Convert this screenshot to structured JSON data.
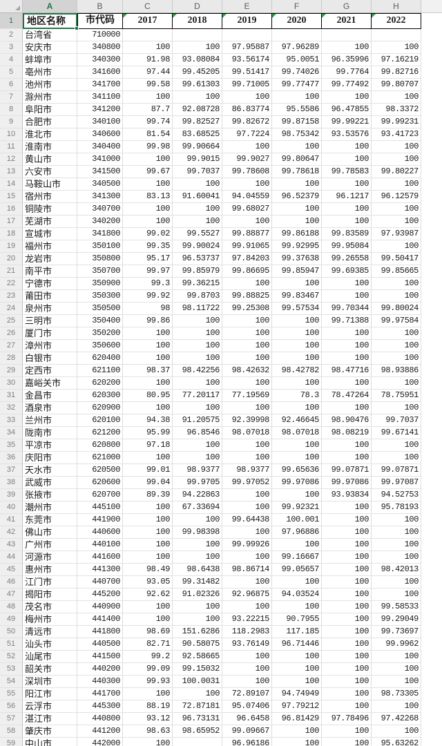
{
  "sheet": {
    "column_letters": [
      "A",
      "B",
      "C",
      "D",
      "E",
      "F",
      "G",
      "H"
    ],
    "selected_column_letter": "A",
    "selected_row_number": "1",
    "selected_cell": "A1",
    "colors": {
      "selection_green": "#217346",
      "error_indicator_green": "#21A33C",
      "header_border_black": "#000000"
    },
    "header": {
      "row_number": "1",
      "region": "地区名称",
      "code": "市代码",
      "years": [
        "2017",
        "2018",
        "2019",
        "2020",
        "2021",
        "2022"
      ]
    },
    "rows": [
      [
        "2",
        "台湾省",
        "710000",
        "",
        "",
        "",
        "",
        "",
        ""
      ],
      [
        "3",
        "安庆市",
        "340800",
        "100",
        "100",
        "97.95887",
        "97.96289",
        "100",
        "100"
      ],
      [
        "4",
        "蚌埠市",
        "340300",
        "91.98",
        "93.08084",
        "93.56174",
        "95.0051",
        "96.35996",
        "97.16219"
      ],
      [
        "5",
        "亳州市",
        "341600",
        "97.44",
        "99.45205",
        "99.51417",
        "99.74026",
        "99.7764",
        "99.82716"
      ],
      [
        "6",
        "池州市",
        "341700",
        "99.58",
        "99.61303",
        "99.71005",
        "99.77477",
        "99.77492",
        "99.80707"
      ],
      [
        "7",
        "滁州市",
        "341100",
        "100",
        "100",
        "100",
        "100",
        "100",
        "100"
      ],
      [
        "8",
        "阜阳市",
        "341200",
        "87.7",
        "92.08728",
        "86.83774",
        "95.5586",
        "96.47855",
        "98.3372"
      ],
      [
        "9",
        "合肥市",
        "340100",
        "99.74",
        "99.82527",
        "99.82672",
        "99.87158",
        "99.99221",
        "99.99231"
      ],
      [
        "10",
        "淮北市",
        "340600",
        "81.54",
        "83.68525",
        "97.7224",
        "98.75342",
        "93.53576",
        "93.41723"
      ],
      [
        "11",
        "淮南市",
        "340400",
        "99.98",
        "99.90664",
        "100",
        "100",
        "100",
        "100"
      ],
      [
        "12",
        "黄山市",
        "341000",
        "100",
        "99.9015",
        "99.9027",
        "99.80647",
        "100",
        "100"
      ],
      [
        "13",
        "六安市",
        "341500",
        "99.67",
        "99.7037",
        "99.78608",
        "99.78618",
        "99.78583",
        "99.80227"
      ],
      [
        "14",
        "马鞍山市",
        "340500",
        "100",
        "100",
        "100",
        "100",
        "100",
        "100"
      ],
      [
        "15",
        "宿州市",
        "341300",
        "83.13",
        "91.60041",
        "94.04559",
        "96.52379",
        "96.1217",
        "96.12579"
      ],
      [
        "16",
        "铜陵市",
        "340700",
        "100",
        "100",
        "99.68027",
        "100",
        "100",
        "100"
      ],
      [
        "17",
        "芜湖市",
        "340200",
        "100",
        "100",
        "100",
        "100",
        "100",
        "100"
      ],
      [
        "18",
        "宣城市",
        "341800",
        "99.02",
        "99.5527",
        "99.88877",
        "99.86188",
        "99.83589",
        "97.93987"
      ],
      [
        "19",
        "福州市",
        "350100",
        "99.35",
        "99.90024",
        "99.91065",
        "99.92995",
        "99.95084",
        "100"
      ],
      [
        "20",
        "龙岩市",
        "350800",
        "95.17",
        "96.53737",
        "97.84203",
        "99.37638",
        "99.26558",
        "99.50417"
      ],
      [
        "21",
        "南平市",
        "350700",
        "99.97",
        "99.85979",
        "99.86695",
        "99.85947",
        "99.69385",
        "99.85665"
      ],
      [
        "22",
        "宁德市",
        "350900",
        "99.3",
        "99.36215",
        "100",
        "100",
        "100",
        "100"
      ],
      [
        "23",
        "莆田市",
        "350300",
        "99.92",
        "99.8703",
        "99.88825",
        "99.83467",
        "100",
        "100"
      ],
      [
        "24",
        "泉州市",
        "350500",
        "98",
        "98.11722",
        "99.25308",
        "99.57534",
        "99.70344",
        "99.80024"
      ],
      [
        "25",
        "三明市",
        "350400",
        "99.86",
        "100",
        "100",
        "100",
        "99.71388",
        "99.97584"
      ],
      [
        "26",
        "厦门市",
        "350200",
        "100",
        "100",
        "100",
        "100",
        "100",
        "100"
      ],
      [
        "27",
        "漳州市",
        "350600",
        "100",
        "100",
        "100",
        "100",
        "100",
        "100"
      ],
      [
        "28",
        "白银市",
        "620400",
        "100",
        "100",
        "100",
        "100",
        "100",
        "100"
      ],
      [
        "29",
        "定西市",
        "621100",
        "98.37",
        "98.42256",
        "98.42632",
        "98.42782",
        "98.47716",
        "98.93886"
      ],
      [
        "30",
        "嘉峪关市",
        "620200",
        "100",
        "100",
        "100",
        "100",
        "100",
        "100"
      ],
      [
        "31",
        "金昌市",
        "620300",
        "80.95",
        "77.20117",
        "77.19569",
        "78.3",
        "78.47264",
        "78.75951"
      ],
      [
        "32",
        "酒泉市",
        "620900",
        "100",
        "100",
        "100",
        "100",
        "100",
        "100"
      ],
      [
        "33",
        "兰州市",
        "620100",
        "94.38",
        "91.20575",
        "92.39998",
        "92.46645",
        "98.90476",
        "99.7037"
      ],
      [
        "34",
        "陇南市",
        "621200",
        "95.99",
        "96.8546",
        "98.07018",
        "98.07018",
        "98.08219",
        "99.67141"
      ],
      [
        "35",
        "平凉市",
        "620800",
        "97.18",
        "100",
        "100",
        "100",
        "100",
        "100"
      ],
      [
        "36",
        "庆阳市",
        "621000",
        "100",
        "100",
        "100",
        "100",
        "100",
        "100"
      ],
      [
        "37",
        "天水市",
        "620500",
        "99.01",
        "98.9377",
        "98.9377",
        "99.65636",
        "99.07871",
        "99.07871"
      ],
      [
        "38",
        "武威市",
        "620600",
        "99.04",
        "99.9705",
        "99.97052",
        "99.97086",
        "99.97086",
        "99.97087"
      ],
      [
        "39",
        "张掖市",
        "620700",
        "89.39",
        "94.22863",
        "100",
        "100",
        "93.93834",
        "94.52753"
      ],
      [
        "40",
        "潮州市",
        "445100",
        "100",
        "67.33694",
        "100",
        "99.92321",
        "100",
        "95.78193"
      ],
      [
        "41",
        "东莞市",
        "441900",
        "100",
        "100",
        "99.64438",
        "100.001",
        "100",
        "100"
      ],
      [
        "42",
        "佛山市",
        "440600",
        "100",
        "99.98398",
        "100",
        "97.96886",
        "100",
        "100"
      ],
      [
        "43",
        "广州市",
        "440100",
        "100",
        "100",
        "99.99926",
        "100",
        "100",
        "100"
      ],
      [
        "44",
        "河源市",
        "441600",
        "100",
        "100",
        "100",
        "99.16667",
        "100",
        "100"
      ],
      [
        "45",
        "惠州市",
        "441300",
        "98.49",
        "98.6438",
        "98.86714",
        "99.05657",
        "100",
        "98.42013"
      ],
      [
        "46",
        "江门市",
        "440700",
        "93.05",
        "99.31482",
        "100",
        "100",
        "100",
        "100"
      ],
      [
        "47",
        "揭阳市",
        "445200",
        "92.62",
        "91.02326",
        "92.96875",
        "94.03524",
        "100",
        "100"
      ],
      [
        "48",
        "茂名市",
        "440900",
        "100",
        "100",
        "100",
        "100",
        "100",
        "99.58533"
      ],
      [
        "49",
        "梅州市",
        "441400",
        "100",
        "100",
        "93.22215",
        "90.7955",
        "100",
        "99.29049"
      ],
      [
        "50",
        "清远市",
        "441800",
        "98.69",
        "151.6286",
        "118.2983",
        "117.185",
        "100",
        "99.73697"
      ],
      [
        "51",
        "汕头市",
        "440500",
        "82.71",
        "90.58075",
        "93.76149",
        "96.71446",
        "100",
        "99.9962"
      ],
      [
        "52",
        "汕尾市",
        "441500",
        "99.2",
        "92.58665",
        "100",
        "100",
        "100",
        "100"
      ],
      [
        "53",
        "韶关市",
        "440200",
        "99.09",
        "99.15032",
        "100",
        "100",
        "100",
        "100"
      ],
      [
        "54",
        "深圳市",
        "440300",
        "99.93",
        "100.0031",
        "100",
        "100",
        "100",
        "100"
      ],
      [
        "55",
        "阳江市",
        "441700",
        "100",
        "100",
        "72.89107",
        "94.74949",
        "100",
        "98.73305"
      ],
      [
        "56",
        "云浮市",
        "445300",
        "88.19",
        "72.87181",
        "95.07406",
        "97.79212",
        "100",
        "100"
      ],
      [
        "57",
        "湛江市",
        "440800",
        "93.12",
        "96.73131",
        "96.6458",
        "96.81429",
        "97.78496",
        "97.42268"
      ],
      [
        "58",
        "肇庆市",
        "441200",
        "98.63",
        "98.65952",
        "99.09667",
        "100",
        "100",
        "100"
      ],
      [
        "59",
        "中山市",
        "442000",
        "100",
        "",
        "96.96186",
        "100",
        "100",
        "95.63262"
      ]
    ]
  }
}
